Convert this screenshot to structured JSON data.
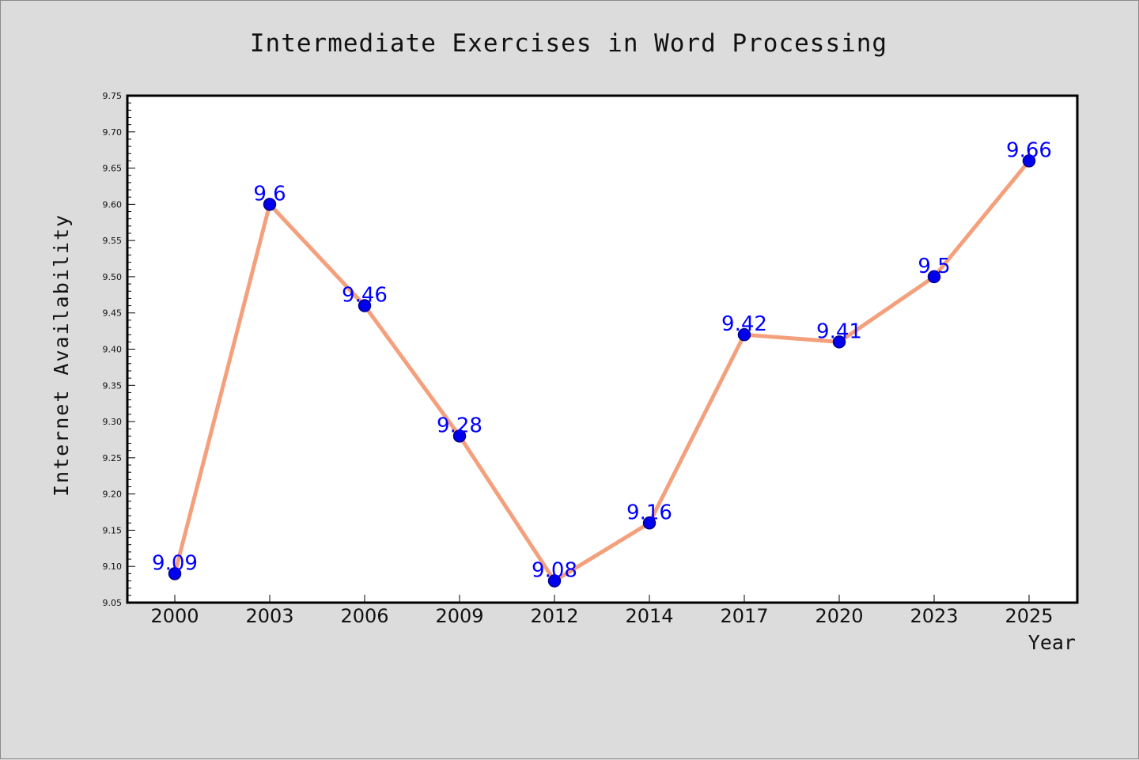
{
  "colors": {
    "background": "#dcdcdc",
    "plot_background": "#ffffff",
    "line": "#f4a07c",
    "marker": "#0000ee",
    "marker_edge": "#00008b",
    "label": "#0000ff"
  },
  "chart_data": {
    "type": "line",
    "title": "Intermediate Exercises in Word Processing",
    "xlabel": "Year",
    "ylabel": "Internet Availability",
    "categories": [
      "2000",
      "2003",
      "2006",
      "2009",
      "2012",
      "2014",
      "2017",
      "2020",
      "2023",
      "2025"
    ],
    "series": [
      {
        "values": [
          9.09,
          9.6,
          9.46,
          9.28,
          9.08,
          9.16,
          9.42,
          9.41,
          9.5,
          9.66
        ],
        "data_labels": [
          "9.09",
          "9.6",
          "9.46",
          "9.28",
          "9.08",
          "9.16",
          "9.42",
          "9.41",
          "9.5",
          "9.66"
        ]
      }
    ],
    "ylim": [
      9.05,
      9.75
    ],
    "yticks": [
      "9.05",
      "9.10",
      "9.15",
      "9.20",
      "9.25",
      "9.30",
      "9.35",
      "9.40",
      "9.45",
      "9.50",
      "9.55",
      "9.60",
      "9.65",
      "9.70",
      "9.75"
    ],
    "grid": false,
    "legend": "none"
  }
}
